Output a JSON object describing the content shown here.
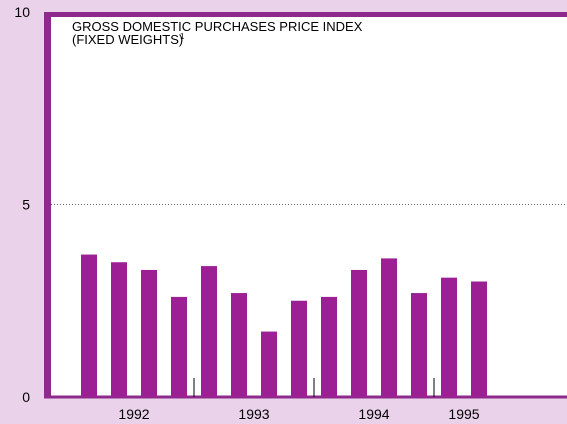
{
  "chart_data": {
    "type": "bar",
    "title": [
      "GROSS DOMESTIC PURCHASES PRICE INDEX",
      "(FIXED WEIGHTS)"
    ],
    "title_note": "1",
    "categories": [
      "1992",
      null,
      null,
      null,
      "1993",
      null,
      null,
      null,
      "1994",
      null,
      null,
      null,
      "1995",
      null
    ],
    "values": [
      3.7,
      3.5,
      3.3,
      2.6,
      3.4,
      2.7,
      1.7,
      2.5,
      2.6,
      3.3,
      3.6,
      2.7,
      3.1,
      3.0
    ],
    "color": "#9c1f94",
    "ylim": [
      0,
      10
    ],
    "yticks": [
      0,
      5,
      10
    ],
    "grid": true
  }
}
